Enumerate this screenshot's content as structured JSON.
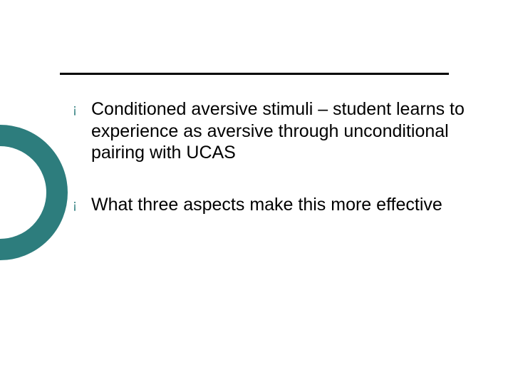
{
  "decor": {
    "circle_border_color": "#2d7d7d",
    "circle_border_width": 30,
    "rule_color": "#000000",
    "rule_width": 3
  },
  "typography": {
    "body_fontsize": 25,
    "body_color": "#000000",
    "body_line_height": 1.22,
    "bullet_color": "#2d7d7d",
    "bullet_fontsize": 18,
    "bullet_glyph": "¡"
  },
  "items": [
    {
      "text": "Conditioned aversive stimuli – student learns to experience as aversive through unconditional pairing with UCAS"
    },
    {
      "text": "What three aspects make this more effective"
    }
  ]
}
